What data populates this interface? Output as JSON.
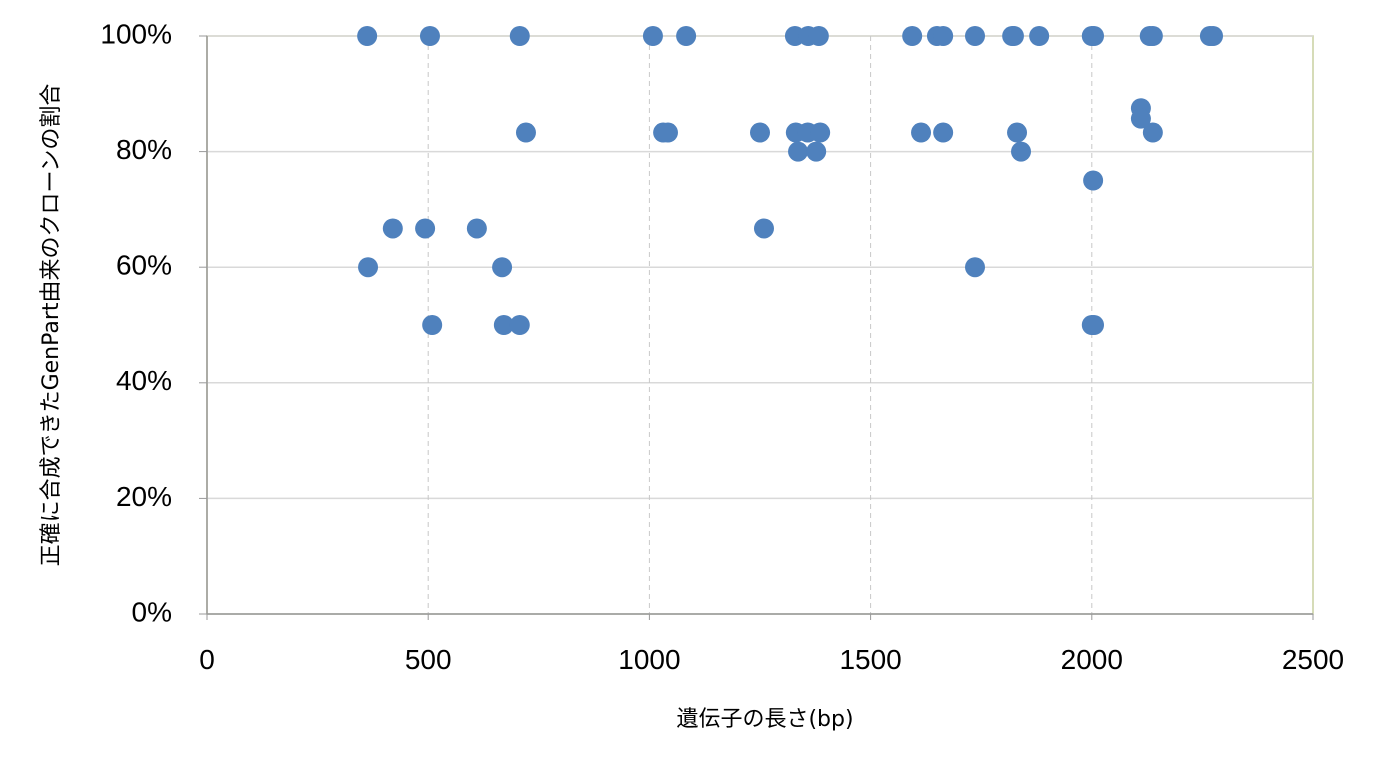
{
  "chart_data": {
    "type": "scatter",
    "x_label": "遺伝子の長さ(bp)",
    "y_label": "正確に合成できたGenPart由来のクローンの割合",
    "color": "#4f81bd",
    "grid": true,
    "xlim": [
      0,
      2500
    ],
    "xticks": [
      0,
      500,
      1000,
      1500,
      2000,
      2500
    ],
    "ylim": [
      0,
      100
    ],
    "yticks": [
      {
        "value": 0,
        "label": "0%"
      },
      {
        "value": 20,
        "label": "20%"
      },
      {
        "value": 40,
        "label": "40%"
      },
      {
        "value": 60,
        "label": "60%"
      },
      {
        "value": 80,
        "label": "80%"
      },
      {
        "value": 100,
        "label": "100%"
      }
    ],
    "x": [
      362,
      504,
      707,
      1008,
      1083,
      1329,
      1359,
      1383,
      1594,
      1650,
      1664,
      1736,
      1820,
      1824,
      1881,
      2000,
      2005,
      2131,
      2138,
      2267,
      2274,
      721,
      1031,
      1042,
      1250,
      1331,
      1358,
      1386,
      1614,
      1664,
      1831,
      2138,
      2111,
      2111,
      1336,
      1377,
      1840,
      2003,
      420,
      493,
      610,
      1259,
      364,
      667,
      1736,
      509,
      671,
      707,
      2000,
      2005
    ],
    "values": [
      100,
      100,
      100,
      100,
      100,
      100,
      100,
      100,
      100,
      100,
      100,
      100,
      100,
      100,
      100,
      100,
      100,
      100,
      100,
      100,
      100,
      83.3,
      83.3,
      83.3,
      83.3,
      83.3,
      83.3,
      83.3,
      83.3,
      83.3,
      83.3,
      83.3,
      87.5,
      85.7,
      80,
      80,
      80,
      75,
      66.7,
      66.7,
      66.7,
      66.7,
      60,
      60,
      60,
      50,
      50,
      50,
      50,
      50
    ]
  }
}
